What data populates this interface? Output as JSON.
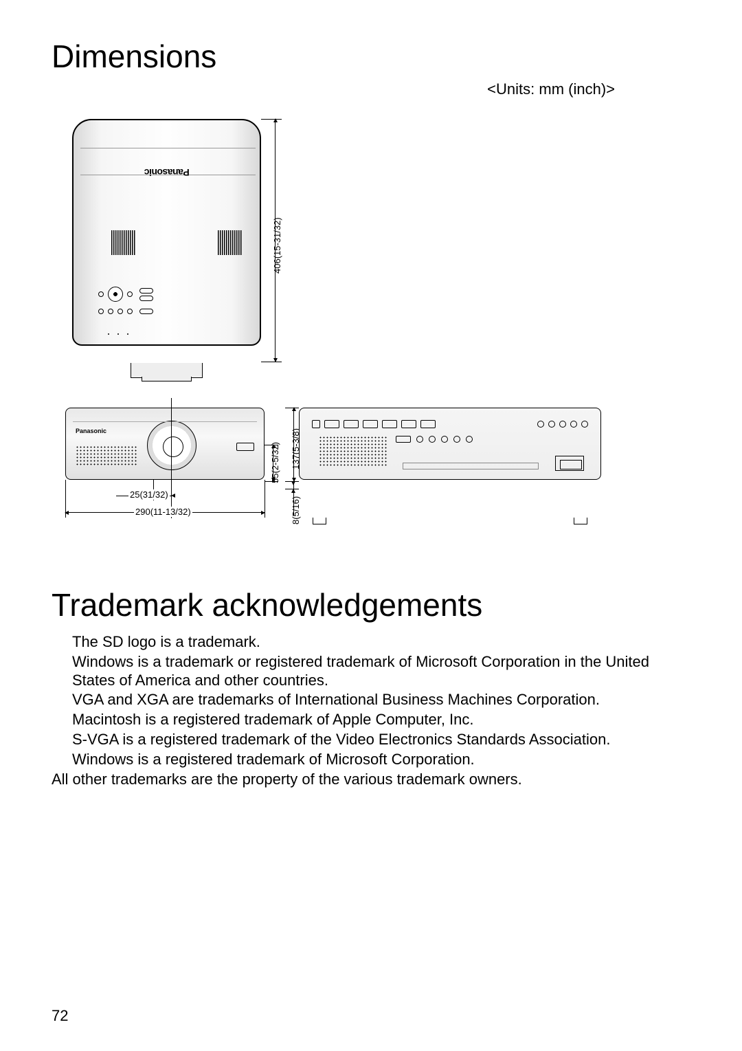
{
  "page": {
    "number": "72",
    "heading_dimensions": "Dimensions",
    "heading_trademark": "Trademark acknowledgements",
    "units_label": "<Units: mm (inch)>"
  },
  "brand": "Panasonic",
  "dimensions": {
    "depth": "406(15-31/32)",
    "width": "290(11-13/32)",
    "lens_offset": "25(31/32)",
    "height_body": "137(5-3/8)",
    "height_lens": "55(2-5/32)",
    "foot": "8(5/16)"
  },
  "diagram_style": {
    "stroke": "#000000",
    "fill_gradient": [
      "#d8d8d8",
      "#fefefe",
      "#d8d8d8"
    ],
    "label_fontsize": 13,
    "line_width": 1.5,
    "background": "#ffffff"
  },
  "trademark_lines": [
    "The SD logo is a trademark.",
    "Windows is a trademark or registered trademark of Microsoft Corporation in the United States of America and other countries.",
    "VGA and XGA are trademarks of International Business Machines Corporation.",
    "Macintosh is a registered trademark of Apple Computer, Inc.",
    "S-VGA is a registered trademark of the Video Electronics Standards Association.",
    "Windows is a registered trademark of Microsoft Corporation."
  ],
  "trademark_footer": "All other trademarks are the property of the various trademark owners."
}
